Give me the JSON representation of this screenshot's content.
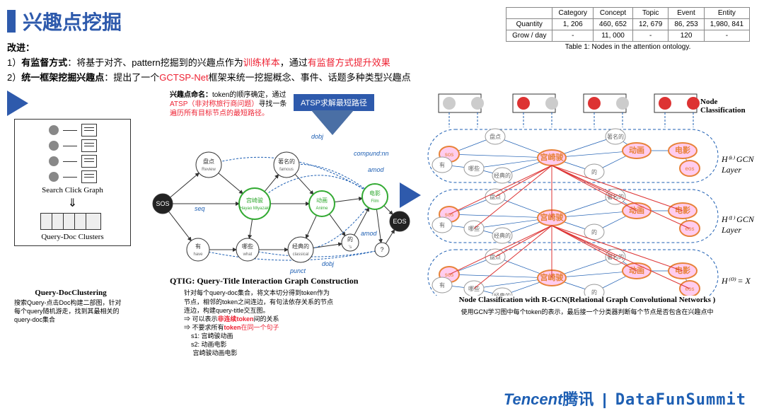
{
  "title": "兴趣点挖掘",
  "table": {
    "headers": [
      "",
      "Category",
      "Concept",
      "Topic",
      "Event",
      "Entity"
    ],
    "rows": [
      [
        "Quantity",
        "1, 206",
        "460, 652",
        "12, 679",
        "86, 253",
        "1,980, 841"
      ],
      [
        "Grow / day",
        "-",
        "11, 000",
        "-",
        "120",
        "-"
      ]
    ],
    "caption": "Table 1: Nodes in the attention ontology."
  },
  "improve": {
    "head": "改进：",
    "l1a": "1）",
    "l1b": "有监督方式",
    "l1c": "：将基于对齐、pattern挖掘到的兴趣点作为",
    "l1d": "训练样本",
    "l1e": "，通过",
    "l1f": "有监督方式提升效果",
    "l2a": "2）",
    "l2b": "统一框架挖掘兴趣点",
    "l2c": "：提出了一个",
    "l2d": "GCTSP-Net",
    "l2e": "框架来统一挖掘概念、事件、话题多种类型兴趣点"
  },
  "naming": {
    "t": "兴趣点命名：",
    "d1": "token的顺序确定，通过",
    "d2": "ATSP（非对称旅行商问题）",
    "d3": "寻找一条",
    "d4": "遍历所有目标节点的最短路径。"
  },
  "atsp": "ATSP求解最短路径",
  "leftbox": {
    "scg": "Search Click Graph",
    "qdc": "Query-Doc Clusters"
  },
  "leftcap": {
    "t": "Query-DocClustering",
    "d": "搜索Query-点击Doc构建二部图，针对每个query随机游走，找到其最相关的query-doc集合"
  },
  "qtig": {
    "title": "QTIG: Query-Title Interaction Graph Construction",
    "d1": "针对每个query-doc集合，将文本切分得到token作为",
    "d2": "节点，相邻的token之间连边，有句法依存关系的节点",
    "d3": "连边，构建query-title交互图。",
    "d4a": "⇒ 可以表示",
    "d4b": "非连续token",
    "d4c": "间的关系",
    "d5a": "⇒ 不要求所有",
    "d5b": "token",
    "d5c": "在同一个句子",
    "s1": "s1: 宫崎骏动画",
    "s2": "s2: 动画电影",
    "s3": "      宫崎骏动画电影",
    "nodes": {
      "sos": "SOS",
      "eos": "EOS",
      "review": {
        "cn": "盘点",
        "en": "Review"
      },
      "miyazaki": {
        "cn": "宫崎骏",
        "en": "Hayao Miyazaki"
      },
      "famous": {
        "cn": "著名的",
        "en": "famous"
      },
      "anime": {
        "cn": "动画",
        "en": "Anime"
      },
      "film": {
        "cn": "电影",
        "en": "Film"
      },
      "have": {
        "cn": "有",
        "en": "have"
      },
      "what": {
        "cn": "哪些",
        "en": "what"
      },
      "classical": {
        "cn": "经典的",
        "en": "classical"
      },
      "de": {
        "cn": "的",
        "en": "'s"
      },
      "q": "?"
    },
    "edges": {
      "seq": "seq",
      "dobj": "dobj",
      "amod": "amod",
      "compund": "compund:nn",
      "punct": "punct"
    }
  },
  "gcn": {
    "title": "Node Classification with R-GCN(Relational Graph Convolutional Networks )",
    "desc": "使用GCN学习图中每个token的表示，最后接一个分类器判断每个节点是否包含在兴趣点中",
    "nodeclass": "Node Classification",
    "layers": {
      "l0": "H⁽⁰⁾ = X",
      "l1": "H⁽¹⁾  GCN Layer",
      "lk": "H⁽ᵏ⁾  GCN Layer"
    },
    "tokens": {
      "sos": "sos",
      "you": "有",
      "pandian": "盘点",
      "naxie": "哪些",
      "jingdian": "经典的",
      "miyazaki": "宫崎骏",
      "de": "的",
      "zhuming": "著名的",
      "donghua": "动画",
      "dianying": "电影",
      "eos": "eos"
    },
    "colors": {
      "orange": "#e8833a",
      "gray": "#999",
      "edge_blue": "#1e5fb3",
      "edge_red": "#d33",
      "dash": "#1e5fb3",
      "bg": "#fff"
    }
  },
  "footer": {
    "tencent_en": "Tencent",
    "tencent_cn": "腾讯",
    "sep": "|",
    "df": "DataFunSummit"
  },
  "nc_circles": {
    "active": "#d33",
    "inactive": "#ccc"
  }
}
